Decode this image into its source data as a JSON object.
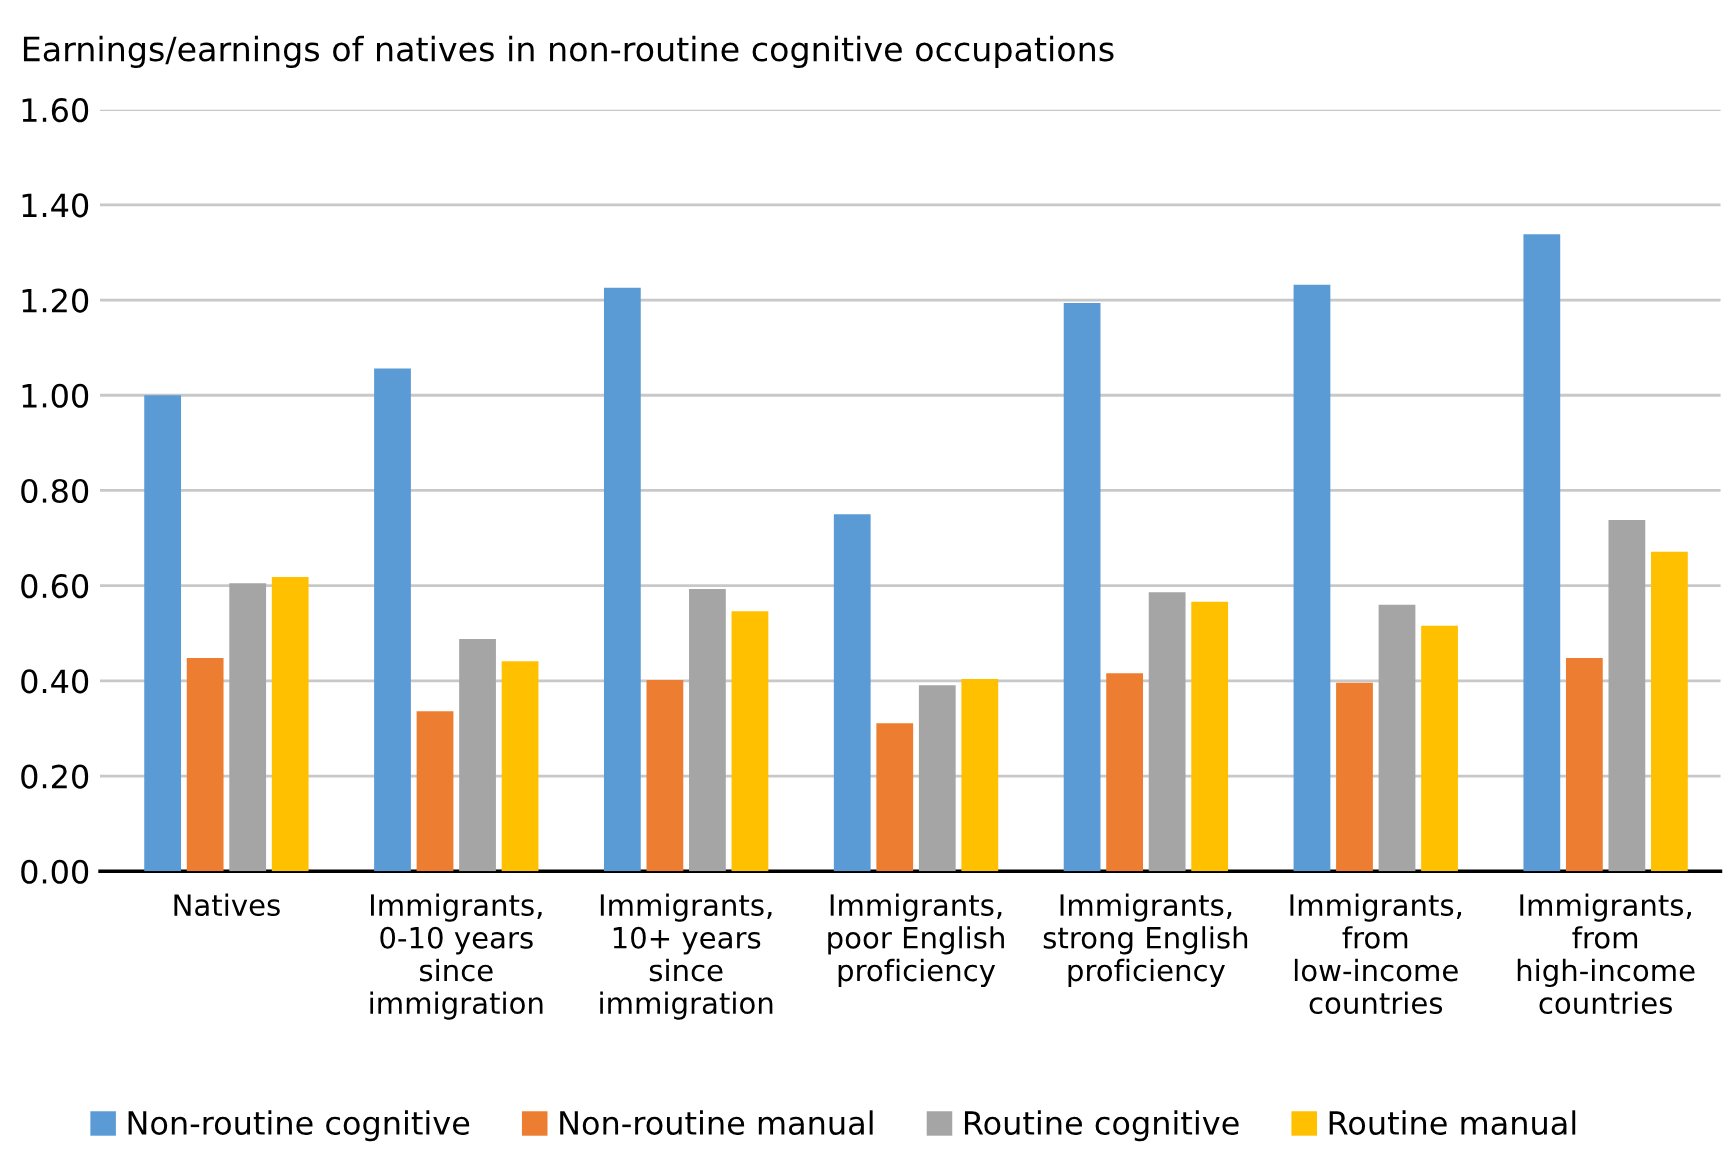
{
  "chart_data": {
    "type": "bar",
    "title": "Earnings/earnings of natives in non-routine cognitive occupations",
    "categories": [
      "Natives",
      "Immigrants,\n0-10 years\nsince\nimmigration",
      "Immigrants,\n10+ years\nsince\nimmigration",
      "Immigrants,\npoor English\nproficiency",
      "Immigrants,\nstrong English\nproficiency",
      "Immigrants,\nfrom\nlow-income\ncountries",
      "Immigrants,\nfrom\nhigh-income\ncountries"
    ],
    "series": [
      {
        "name": "Non-routine cognitive",
        "color": "#5b9bd5",
        "values": [
          1.0,
          1.056,
          1.226,
          0.75,
          1.194,
          1.232,
          1.338
        ]
      },
      {
        "name": "Non-routine manual",
        "color": "#ed7d31",
        "values": [
          0.448,
          0.336,
          0.402,
          0.311,
          0.416,
          0.396,
          0.448
        ]
      },
      {
        "name": "Routine cognitive",
        "color": "#a5a5a5",
        "values": [
          0.605,
          0.488,
          0.593,
          0.391,
          0.586,
          0.56,
          0.738
        ]
      },
      {
        "name": "Routine manual",
        "color": "#ffc000",
        "values": [
          0.618,
          0.441,
          0.546,
          0.404,
          0.566,
          0.516,
          0.671
        ]
      }
    ],
    "ylim": [
      0,
      1.6
    ],
    "yticks": [
      {
        "value": 0,
        "label": "0.00"
      },
      {
        "value": 0.2,
        "label": "0.20"
      },
      {
        "value": 0.4,
        "label": "0.40"
      },
      {
        "value": 0.6,
        "label": "0.60"
      },
      {
        "value": 0.8,
        "label": "0.80"
      },
      {
        "value": 1.0,
        "label": "1.00"
      },
      {
        "value": 1.2,
        "label": "1.20"
      },
      {
        "value": 1.4,
        "label": "1.40"
      },
      {
        "value": 1.6,
        "label": "1.60"
      }
    ],
    "grid": "y",
    "legend": "bottom"
  }
}
